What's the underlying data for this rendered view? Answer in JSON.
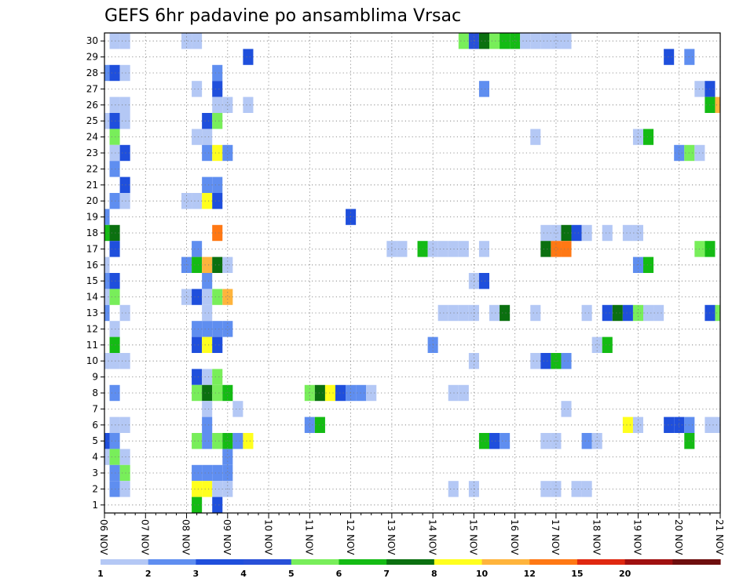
{
  "chart_data": {
    "type": "heatmap",
    "title": "GEFS 6hr padavine po ansamblima Vrsac",
    "xlabel": "",
    "ylabel": "",
    "x_ticks": [
      "06 NOV",
      "07 NOV",
      "08 NOV",
      "09 NOV",
      "10 NOV",
      "11 NOV",
      "12 NOV",
      "13 NOV",
      "14 NOV",
      "15 NOV",
      "16 NOV",
      "17 NOV",
      "18 NOV",
      "19 NOV",
      "20 NOV",
      "21 NOV"
    ],
    "y_ticks": [
      "1",
      "2",
      "3",
      "4",
      "5",
      "6",
      "7",
      "8",
      "9",
      "10",
      "11",
      "12",
      "13",
      "14",
      "15",
      "16",
      "17",
      "18",
      "19",
      "20",
      "21",
      "22",
      "23",
      "24",
      "25",
      "26",
      "27",
      "28",
      "29",
      "30"
    ],
    "grid": true,
    "legend_position": "bottom",
    "legend_labels": [
      "1",
      "2",
      "3",
      "4",
      "5",
      "6",
      "7",
      "8",
      "10",
      "12",
      "15",
      "20"
    ],
    "legend_colors": [
      "#b4c8f5",
      "#5f8ef0",
      "#1f4fdc",
      "#2850d8",
      "#78ee5a",
      "#14bb14",
      "#0b7010",
      "#ffff1e",
      "#ffb43c",
      "#ff7814",
      "#e02810",
      "#a01010",
      "#6e0e0e"
    ],
    "cells": [
      {
        "m": 30,
        "s": [
          1,
          2
        ],
        "v": 1
      },
      {
        "m": 30,
        "s": [
          8,
          9
        ],
        "v": 1
      },
      {
        "m": 30,
        "s": [
          35
        ],
        "v": 5
      },
      {
        "m": 30,
        "s": [
          36
        ],
        "v": 4
      },
      {
        "m": 30,
        "s": [
          37
        ],
        "v": 7
      },
      {
        "m": 30,
        "s": [
          38
        ],
        "v": 5
      },
      {
        "m": 30,
        "s": [
          39,
          40
        ],
        "v": 6
      },
      {
        "m": 30,
        "s": [
          41,
          42,
          43,
          44,
          45
        ],
        "v": 1
      },
      {
        "m": 29,
        "s": [
          14
        ],
        "v": 3
      },
      {
        "m": 29,
        "s": [
          55
        ],
        "v": 3
      },
      {
        "m": 29,
        "s": [
          57
        ],
        "v": 2
      },
      {
        "m": 28,
        "s": [
          0
        ],
        "v": 2
      },
      {
        "m": 28,
        "s": [
          1
        ],
        "v": 3
      },
      {
        "m": 28,
        "s": [
          2
        ],
        "v": 1
      },
      {
        "m": 28,
        "s": [
          11
        ],
        "v": 2
      },
      {
        "m": 27,
        "s": [
          9
        ],
        "v": 1
      },
      {
        "m": 27,
        "s": [
          11
        ],
        "v": 3
      },
      {
        "m": 27,
        "s": [
          37
        ],
        "v": 2
      },
      {
        "m": 27,
        "s": [
          58
        ],
        "v": 1
      },
      {
        "m": 27,
        "s": [
          59
        ],
        "v": 3
      },
      {
        "m": 26,
        "s": [
          1,
          2
        ],
        "v": 1
      },
      {
        "m": 26,
        "s": [
          11,
          12
        ],
        "v": 1
      },
      {
        "m": 26,
        "s": [
          14
        ],
        "v": 1
      },
      {
        "m": 26,
        "s": [
          59
        ],
        "v": 6
      },
      {
        "m": 26,
        "s": [
          60
        ],
        "v": 10
      },
      {
        "m": 25,
        "s": [
          0
        ],
        "v": 1
      },
      {
        "m": 25,
        "s": [
          1
        ],
        "v": 3
      },
      {
        "m": 25,
        "s": [
          2
        ],
        "v": 1
      },
      {
        "m": 25,
        "s": [
          10
        ],
        "v": 3
      },
      {
        "m": 25,
        "s": [
          11
        ],
        "v": 5
      },
      {
        "m": 24,
        "s": [
          1
        ],
        "v": 5
      },
      {
        "m": 24,
        "s": [
          9,
          10
        ],
        "v": 1
      },
      {
        "m": 24,
        "s": [
          42
        ],
        "v": 1
      },
      {
        "m": 24,
        "s": [
          52
        ],
        "v": 1
      },
      {
        "m": 24,
        "s": [
          53
        ],
        "v": 6
      },
      {
        "m": 23,
        "s": [
          1
        ],
        "v": 1
      },
      {
        "m": 23,
        "s": [
          2
        ],
        "v": 3
      },
      {
        "m": 23,
        "s": [
          10
        ],
        "v": 2
      },
      {
        "m": 23,
        "s": [
          11
        ],
        "v": 8
      },
      {
        "m": 23,
        "s": [
          12
        ],
        "v": 2
      },
      {
        "m": 23,
        "s": [
          56
        ],
        "v": 2
      },
      {
        "m": 23,
        "s": [
          57
        ],
        "v": 5
      },
      {
        "m": 23,
        "s": [
          58
        ],
        "v": 1
      },
      {
        "m": 22,
        "s": [
          1
        ],
        "v": 2
      },
      {
        "m": 21,
        "s": [
          2
        ],
        "v": 3
      },
      {
        "m": 21,
        "s": [
          10,
          11
        ],
        "v": 2
      },
      {
        "m": 20,
        "s": [
          1
        ],
        "v": 2
      },
      {
        "m": 20,
        "s": [
          2
        ],
        "v": 1
      },
      {
        "m": 20,
        "s": [
          8,
          9
        ],
        "v": 1
      },
      {
        "m": 20,
        "s": [
          10
        ],
        "v": 8
      },
      {
        "m": 20,
        "s": [
          11
        ],
        "v": 3
      },
      {
        "m": 19,
        "s": [
          0
        ],
        "v": 2
      },
      {
        "m": 19,
        "s": [
          24
        ],
        "v": 3
      },
      {
        "m": 18,
        "s": [
          0
        ],
        "v": 6
      },
      {
        "m": 18,
        "s": [
          1
        ],
        "v": 7
      },
      {
        "m": 18,
        "s": [
          11
        ],
        "v": 12
      },
      {
        "m": 18,
        "s": [
          43,
          44
        ],
        "v": 1
      },
      {
        "m": 18,
        "s": [
          45
        ],
        "v": 7
      },
      {
        "m": 18,
        "s": [
          46
        ],
        "v": 3
      },
      {
        "m": 18,
        "s": [
          47
        ],
        "v": 1
      },
      {
        "m": 18,
        "s": [
          49
        ],
        "v": 1
      },
      {
        "m": 18,
        "s": [
          51,
          52
        ],
        "v": 1
      },
      {
        "m": 17,
        "s": [
          1
        ],
        "v": 3
      },
      {
        "m": 17,
        "s": [
          9
        ],
        "v": 2
      },
      {
        "m": 17,
        "s": [
          28,
          29
        ],
        "v": 1
      },
      {
        "m": 17,
        "s": [
          31
        ],
        "v": 6
      },
      {
        "m": 17,
        "s": [
          32,
          33,
          34,
          35
        ],
        "v": 1
      },
      {
        "m": 17,
        "s": [
          37
        ],
        "v": 1
      },
      {
        "m": 17,
        "s": [
          43
        ],
        "v": 7
      },
      {
        "m": 17,
        "s": [
          44,
          45
        ],
        "v": 12
      },
      {
        "m": 17,
        "s": [
          58
        ],
        "v": 5
      },
      {
        "m": 17,
        "s": [
          59
        ],
        "v": 6
      },
      {
        "m": 16,
        "s": [
          0
        ],
        "v": 1
      },
      {
        "m": 16,
        "s": [
          8
        ],
        "v": 2
      },
      {
        "m": 16,
        "s": [
          9
        ],
        "v": 6
      },
      {
        "m": 16,
        "s": [
          10
        ],
        "v": 10
      },
      {
        "m": 16,
        "s": [
          11
        ],
        "v": 7
      },
      {
        "m": 16,
        "s": [
          12
        ],
        "v": 1
      },
      {
        "m": 16,
        "s": [
          52
        ],
        "v": 2
      },
      {
        "m": 16,
        "s": [
          53
        ],
        "v": 6
      },
      {
        "m": 15,
        "s": [
          0
        ],
        "v": 2
      },
      {
        "m": 15,
        "s": [
          1
        ],
        "v": 3
      },
      {
        "m": 15,
        "s": [
          10
        ],
        "v": 2
      },
      {
        "m": 15,
        "s": [
          36
        ],
        "v": 1
      },
      {
        "m": 15,
        "s": [
          37
        ],
        "v": 3
      },
      {
        "m": 14,
        "s": [
          0
        ],
        "v": 1
      },
      {
        "m": 14,
        "s": [
          1
        ],
        "v": 5
      },
      {
        "m": 14,
        "s": [
          8
        ],
        "v": 1
      },
      {
        "m": 14,
        "s": [
          9
        ],
        "v": 3
      },
      {
        "m": 14,
        "s": [
          10
        ],
        "v": 1
      },
      {
        "m": 14,
        "s": [
          11
        ],
        "v": 5
      },
      {
        "m": 14,
        "s": [
          12
        ],
        "v": 10
      },
      {
        "m": 13,
        "s": [
          0
        ],
        "v": 2
      },
      {
        "m": 13,
        "s": [
          2
        ],
        "v": 1
      },
      {
        "m": 13,
        "s": [
          10
        ],
        "v": 1
      },
      {
        "m": 13,
        "s": [
          33,
          34,
          35,
          36
        ],
        "v": 1
      },
      {
        "m": 13,
        "s": [
          38
        ],
        "v": 1
      },
      {
        "m": 13,
        "s": [
          39
        ],
        "v": 7
      },
      {
        "m": 13,
        "s": [
          42
        ],
        "v": 1
      },
      {
        "m": 13,
        "s": [
          47
        ],
        "v": 1
      },
      {
        "m": 13,
        "s": [
          49
        ],
        "v": 3
      },
      {
        "m": 13,
        "s": [
          50
        ],
        "v": 7
      },
      {
        "m": 13,
        "s": [
          51
        ],
        "v": 3
      },
      {
        "m": 13,
        "s": [
          52
        ],
        "v": 5
      },
      {
        "m": 13,
        "s": [
          53,
          54
        ],
        "v": 1
      },
      {
        "m": 13,
        "s": [
          59
        ],
        "v": 3
      },
      {
        "m": 13,
        "s": [
          60
        ],
        "v": 5
      },
      {
        "m": 12,
        "s": [
          1
        ],
        "v": 1
      },
      {
        "m": 12,
        "s": [
          9,
          10,
          11,
          12
        ],
        "v": 2
      },
      {
        "m": 11,
        "s": [
          1
        ],
        "v": 6
      },
      {
        "m": 11,
        "s": [
          9
        ],
        "v": 3
      },
      {
        "m": 11,
        "s": [
          10
        ],
        "v": 8
      },
      {
        "m": 11,
        "s": [
          11
        ],
        "v": 3
      },
      {
        "m": 11,
        "s": [
          32
        ],
        "v": 2
      },
      {
        "m": 11,
        "s": [
          48
        ],
        "v": 1
      },
      {
        "m": 11,
        "s": [
          49
        ],
        "v": 6
      },
      {
        "m": 10,
        "s": [
          0,
          1,
          2
        ],
        "v": 1
      },
      {
        "m": 10,
        "s": [
          36
        ],
        "v": 1
      },
      {
        "m": 10,
        "s": [
          42
        ],
        "v": 1
      },
      {
        "m": 10,
        "s": [
          43
        ],
        "v": 3
      },
      {
        "m": 10,
        "s": [
          44
        ],
        "v": 6
      },
      {
        "m": 10,
        "s": [
          45
        ],
        "v": 2
      },
      {
        "m": 9,
        "s": [
          9
        ],
        "v": 3
      },
      {
        "m": 9,
        "s": [
          10
        ],
        "v": 1
      },
      {
        "m": 9,
        "s": [
          11
        ],
        "v": 5
      },
      {
        "m": 8,
        "s": [
          1
        ],
        "v": 2
      },
      {
        "m": 8,
        "s": [
          9
        ],
        "v": 5
      },
      {
        "m": 8,
        "s": [
          10
        ],
        "v": 7
      },
      {
        "m": 8,
        "s": [
          11
        ],
        "v": 5
      },
      {
        "m": 8,
        "s": [
          12
        ],
        "v": 6
      },
      {
        "m": 8,
        "s": [
          20
        ],
        "v": 5
      },
      {
        "m": 8,
        "s": [
          21
        ],
        "v": 7
      },
      {
        "m": 8,
        "s": [
          22
        ],
        "v": 8
      },
      {
        "m": 8,
        "s": [
          23
        ],
        "v": 3
      },
      {
        "m": 8,
        "s": [
          24,
          25
        ],
        "v": 2
      },
      {
        "m": 8,
        "s": [
          26
        ],
        "v": 1
      },
      {
        "m": 8,
        "s": [
          34,
          35
        ],
        "v": 1
      },
      {
        "m": 7,
        "s": [
          10
        ],
        "v": 1
      },
      {
        "m": 7,
        "s": [
          13
        ],
        "v": 1
      },
      {
        "m": 7,
        "s": [
          45
        ],
        "v": 1
      },
      {
        "m": 6,
        "s": [
          1,
          2
        ],
        "v": 1
      },
      {
        "m": 6,
        "s": [
          10
        ],
        "v": 2
      },
      {
        "m": 6,
        "s": [
          20
        ],
        "v": 2
      },
      {
        "m": 6,
        "s": [
          21
        ],
        "v": 6
      },
      {
        "m": 6,
        "s": [
          51
        ],
        "v": 8
      },
      {
        "m": 6,
        "s": [
          52
        ],
        "v": 1
      },
      {
        "m": 6,
        "s": [
          55,
          56
        ],
        "v": 3
      },
      {
        "m": 6,
        "s": [
          57
        ],
        "v": 2
      },
      {
        "m": 6,
        "s": [
          59,
          60
        ],
        "v": 1
      },
      {
        "m": 5,
        "s": [
          0
        ],
        "v": 3
      },
      {
        "m": 5,
        "s": [
          1
        ],
        "v": 2
      },
      {
        "m": 5,
        "s": [
          9
        ],
        "v": 5
      },
      {
        "m": 5,
        "s": [
          10
        ],
        "v": 2
      },
      {
        "m": 5,
        "s": [
          11
        ],
        "v": 5
      },
      {
        "m": 5,
        "s": [
          12
        ],
        "v": 6
      },
      {
        "m": 5,
        "s": [
          13
        ],
        "v": 2
      },
      {
        "m": 5,
        "s": [
          14
        ],
        "v": 8
      },
      {
        "m": 5,
        "s": [
          37
        ],
        "v": 6
      },
      {
        "m": 5,
        "s": [
          38
        ],
        "v": 3
      },
      {
        "m": 5,
        "s": [
          39
        ],
        "v": 2
      },
      {
        "m": 5,
        "s": [
          43,
          44
        ],
        "v": 1
      },
      {
        "m": 5,
        "s": [
          47
        ],
        "v": 2
      },
      {
        "m": 5,
        "s": [
          48
        ],
        "v": 1
      },
      {
        "m": 5,
        "s": [
          57
        ],
        "v": 6
      },
      {
        "m": 4,
        "s": [
          0
        ],
        "v": 1
      },
      {
        "m": 4,
        "s": [
          1
        ],
        "v": 5
      },
      {
        "m": 4,
        "s": [
          2
        ],
        "v": 1
      },
      {
        "m": 4,
        "s": [
          12
        ],
        "v": 2
      },
      {
        "m": 3,
        "s": [
          1
        ],
        "v": 2
      },
      {
        "m": 3,
        "s": [
          2
        ],
        "v": 5
      },
      {
        "m": 3,
        "s": [
          9,
          10,
          11,
          12
        ],
        "v": 2
      },
      {
        "m": 2,
        "s": [
          1
        ],
        "v": 2
      },
      {
        "m": 2,
        "s": [
          2
        ],
        "v": 1
      },
      {
        "m": 2,
        "s": [
          9,
          10
        ],
        "v": 8
      },
      {
        "m": 2,
        "s": [
          11,
          12
        ],
        "v": 1
      },
      {
        "m": 2,
        "s": [
          34
        ],
        "v": 1
      },
      {
        "m": 2,
        "s": [
          36
        ],
        "v": 1
      },
      {
        "m": 2,
        "s": [
          43,
          44
        ],
        "v": 1
      },
      {
        "m": 2,
        "s": [
          46,
          47
        ],
        "v": 1
      },
      {
        "m": 1,
        "s": [
          9
        ],
        "v": 6
      },
      {
        "m": 1,
        "s": [
          11
        ],
        "v": 3
      }
    ]
  }
}
